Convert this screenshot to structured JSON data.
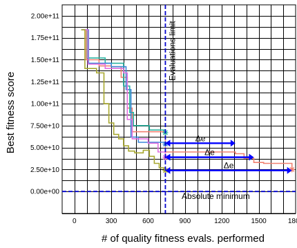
{
  "chart_data": {
    "type": "line",
    "title": "",
    "xlabel": "# of quality fitness evals. performed",
    "ylabel": "Best fitness score",
    "xlim": [
      -100,
      1800
    ],
    "ylim": [
      -25000000000,
      212500000000
    ],
    "grid": true,
    "x_ticks": [
      0,
      300,
      600,
      900,
      1200,
      1500,
      1800
    ],
    "x_tick_labels": [
      "0",
      "300",
      "600",
      "900",
      "1200",
      "1500",
      "1800"
    ],
    "y_ticks": [
      0,
      25000000000,
      50000000000,
      75000000000,
      100000000000,
      125000000000,
      150000000000,
      175000000000,
      200000000000
    ],
    "y_tick_labels": [
      "0.00e+00",
      "2.50e+10",
      "5.00e+10",
      "7.50e+10",
      "1.00e+11",
      "1.25e+11",
      "1.50e+11",
      "1.75e+11",
      "2.00e+11"
    ],
    "series": [
      {
        "color": "#f08070",
        "marker_x": 1770,
        "points": [
          [
            60,
            184000000000
          ],
          [
            95,
            184000000000
          ],
          [
            95,
            150000000000
          ],
          [
            200,
            150000000000
          ],
          [
            200,
            143000000000
          ],
          [
            300,
            143000000000
          ],
          [
            300,
            142000000000
          ],
          [
            380,
            142000000000
          ],
          [
            380,
            130000000000
          ],
          [
            430,
            130000000000
          ],
          [
            430,
            95000000000
          ],
          [
            470,
            95000000000
          ],
          [
            470,
            68000000000
          ],
          [
            740,
            68000000000
          ],
          [
            740,
            45000000000
          ],
          [
            1310,
            45000000000
          ],
          [
            1310,
            43000000000
          ],
          [
            1380,
            43000000000
          ],
          [
            1380,
            38000000000
          ],
          [
            1460,
            38000000000
          ],
          [
            1460,
            33000000000
          ],
          [
            1540,
            33000000000
          ],
          [
            1540,
            32000000000
          ],
          [
            1770,
            32000000000
          ],
          [
            1770,
            25000000000
          ]
        ]
      },
      {
        "color": "#2ab3a0",
        "marker_x": 740,
        "points": [
          [
            55,
            184000000000
          ],
          [
            105,
            184000000000
          ],
          [
            105,
            152000000000
          ],
          [
            250,
            152000000000
          ],
          [
            250,
            146000000000
          ],
          [
            400,
            146000000000
          ],
          [
            400,
            120000000000
          ],
          [
            450,
            120000000000
          ],
          [
            450,
            90000000000
          ],
          [
            480,
            90000000000
          ],
          [
            480,
            75000000000
          ],
          [
            610,
            75000000000
          ],
          [
            610,
            70000000000
          ],
          [
            740,
            70000000000
          ],
          [
            740,
            67000000000
          ]
        ]
      },
      {
        "color": "#3a86d8",
        "marker_x": 740,
        "points": [
          [
            55,
            184000000000
          ],
          [
            115,
            184000000000
          ],
          [
            115,
            146000000000
          ],
          [
            300,
            146000000000
          ],
          [
            300,
            142000000000
          ],
          [
            420,
            142000000000
          ],
          [
            420,
            116000000000
          ],
          [
            460,
            116000000000
          ],
          [
            460,
            62000000000
          ],
          [
            520,
            62000000000
          ],
          [
            520,
            56000000000
          ],
          [
            740,
            56000000000
          ],
          [
            740,
            54000000000
          ]
        ]
      },
      {
        "color": "#e070e0",
        "marker_x": 740,
        "points": [
          [
            60,
            184000000000
          ],
          [
            110,
            184000000000
          ],
          [
            110,
            145000000000
          ],
          [
            250,
            145000000000
          ],
          [
            250,
            140000000000
          ],
          [
            400,
            140000000000
          ],
          [
            400,
            135000000000
          ],
          [
            430,
            135000000000
          ],
          [
            430,
            82000000000
          ],
          [
            470,
            82000000000
          ],
          [
            470,
            60000000000
          ],
          [
            600,
            60000000000
          ],
          [
            600,
            55000000000
          ],
          [
            680,
            55000000000
          ],
          [
            680,
            45000000000
          ],
          [
            740,
            45000000000
          ],
          [
            740,
            39000000000
          ]
        ]
      },
      {
        "color": "#a8a830",
        "marker_x": 740,
        "points": [
          [
            55,
            184000000000
          ],
          [
            85,
            184000000000
          ],
          [
            85,
            140000000000
          ],
          [
            180,
            140000000000
          ],
          [
            180,
            135000000000
          ],
          [
            240,
            135000000000
          ],
          [
            240,
            100000000000
          ],
          [
            280,
            100000000000
          ],
          [
            280,
            78000000000
          ],
          [
            320,
            78000000000
          ],
          [
            320,
            65000000000
          ],
          [
            360,
            65000000000
          ],
          [
            360,
            60000000000
          ],
          [
            400,
            60000000000
          ],
          [
            400,
            52000000000
          ],
          [
            440,
            52000000000
          ],
          [
            440,
            46000000000
          ],
          [
            490,
            46000000000
          ],
          [
            490,
            44000000000
          ],
          [
            560,
            44000000000
          ],
          [
            560,
            47000000000
          ],
          [
            610,
            47000000000
          ],
          [
            610,
            40000000000
          ],
          [
            650,
            40000000000
          ],
          [
            650,
            32000000000
          ],
          [
            690,
            32000000000
          ],
          [
            690,
            27000000000
          ],
          [
            740,
            27000000000
          ],
          [
            740,
            24000000000
          ]
        ]
      }
    ],
    "annotations": {
      "evaluations_limit_label": "Evaluations limit",
      "evaluations_limit_x": 740,
      "absolute_minimum_label": "Absolute minimum",
      "absolute_minimum_y": 0,
      "delta_label": "Δe",
      "delta_arrows": [
        {
          "from_x": 740,
          "to_x": 1310,
          "y": 55000000000
        },
        {
          "from_x": 740,
          "to_x": 1460,
          "y": 39000000000
        },
        {
          "from_x": 740,
          "to_x": 1770,
          "y": 24000000000
        }
      ]
    }
  },
  "colors": {
    "limit_line": "#0000cc",
    "minimum_line": "#0000cc",
    "arrow": "#0000ff",
    "grid": "#000000"
  }
}
